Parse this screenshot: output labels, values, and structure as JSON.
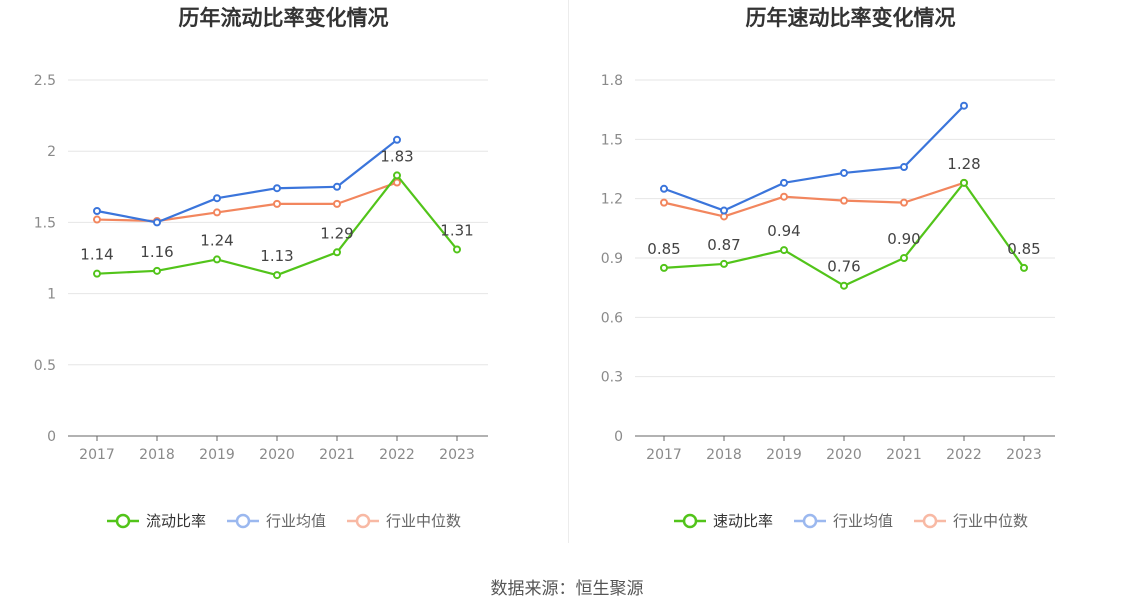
{
  "chart_data": [
    {
      "type": "line",
      "title": "历年流动比率变化情况",
      "categories": [
        "2017",
        "2018",
        "2019",
        "2020",
        "2021",
        "2022",
        "2023"
      ],
      "ylim": [
        0,
        2.5
      ],
      "yticks": [
        "0",
        "0.5",
        "1",
        "1.5",
        "2",
        "2.5"
      ],
      "grid": true,
      "legend_position": "bottom",
      "series": [
        {
          "name": "流动比率",
          "values": [
            1.14,
            1.16,
            1.24,
            1.13,
            1.29,
            1.83,
            1.31
          ],
          "labels": [
            "1.14",
            "1.16",
            "1.24",
            "1.13",
            "1.29",
            "1.83",
            "1.31"
          ],
          "color": "#52c41a"
        },
        {
          "name": "行业均值",
          "values": [
            1.58,
            1.5,
            1.67,
            1.74,
            1.75,
            2.08,
            null
          ],
          "color": "#3b75db"
        },
        {
          "name": "行业中位数",
          "values": [
            1.52,
            1.51,
            1.57,
            1.63,
            1.63,
            1.78,
            null
          ],
          "color": "#f2865e"
        }
      ]
    },
    {
      "type": "line",
      "title": "历年速动比率变化情况",
      "categories": [
        "2017",
        "2018",
        "2019",
        "2020",
        "2021",
        "2022",
        "2023"
      ],
      "ylim": [
        0,
        1.8
      ],
      "yticks": [
        "0",
        "0.3",
        "0.6",
        "0.9",
        "1.2",
        "1.5",
        "1.8"
      ],
      "grid": true,
      "legend_position": "bottom",
      "series": [
        {
          "name": "速动比率",
          "values": [
            0.85,
            0.87,
            0.94,
            0.76,
            0.9,
            1.28,
            0.85
          ],
          "labels": [
            "0.85",
            "0.87",
            "0.94",
            "0.76",
            "0.90",
            "1.28",
            "0.85"
          ],
          "color": "#52c41a"
        },
        {
          "name": "行业均值",
          "values": [
            1.25,
            1.14,
            1.28,
            1.33,
            1.36,
            1.67,
            null
          ],
          "color": "#3b75db"
        },
        {
          "name": "行业中位数",
          "values": [
            1.18,
            1.11,
            1.21,
            1.19,
            1.18,
            1.28,
            null
          ],
          "color": "#f2865e"
        }
      ]
    }
  ],
  "legend_faded_colors": [
    "#52c41a",
    "#9bb8ef",
    "#f8b9a4"
  ],
  "source": "数据来源：恒生聚源"
}
